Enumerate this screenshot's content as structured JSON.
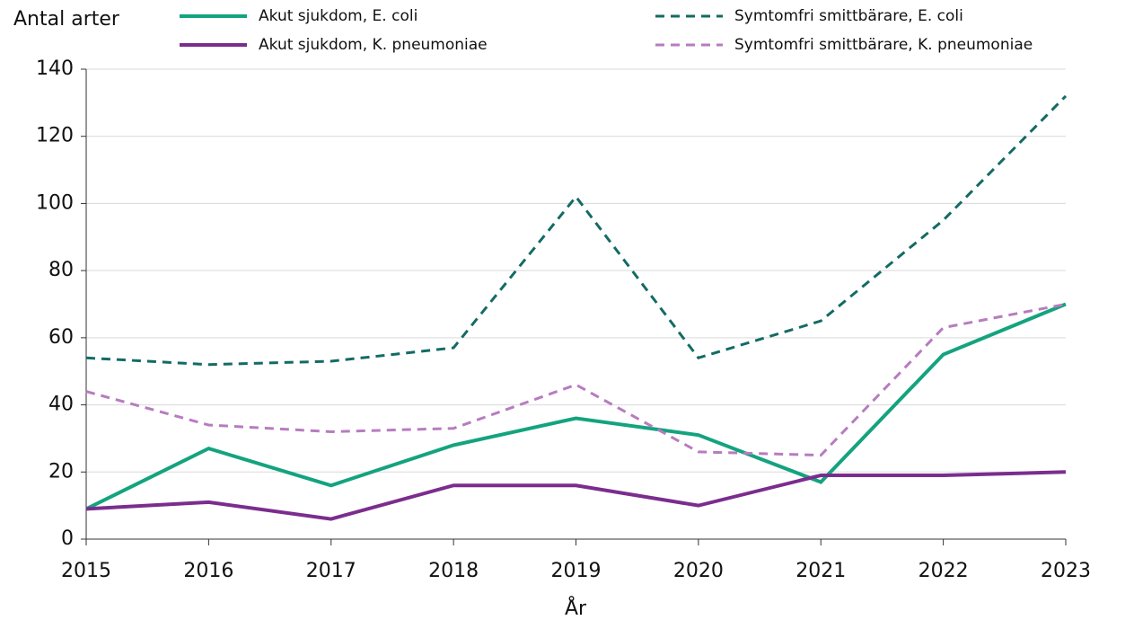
{
  "chart_data": {
    "type": "line",
    "y_label": "Antal arter",
    "x_label": "År",
    "x": [
      2015,
      2016,
      2017,
      2018,
      2019,
      2020,
      2021,
      2022,
      2023
    ],
    "xlim": [
      2015,
      2023
    ],
    "xticks": [
      2015,
      2016,
      2017,
      2018,
      2019,
      2020,
      2021,
      2022,
      2023
    ],
    "ylim": [
      0,
      140
    ],
    "yticks": [
      0,
      20,
      40,
      60,
      80,
      100,
      120,
      140
    ],
    "grid": true,
    "series": [
      {
        "name": "Akut sjukdom, E. coli",
        "color": "#14a37f",
        "dashed": false,
        "values": [
          9,
          27,
          16,
          28,
          36,
          31,
          17,
          55,
          70
        ]
      },
      {
        "name": "Symtomfri smittbärare, E. coli",
        "color": "#136b64",
        "dashed": true,
        "values": [
          54,
          52,
          53,
          57,
          102,
          54,
          65,
          95,
          132
        ]
      },
      {
        "name": "Akut sjukdom, K. pneumoniae",
        "color": "#7b2d8e",
        "dashed": false,
        "values": [
          9,
          11,
          6,
          16,
          16,
          10,
          19,
          19,
          20
        ]
      },
      {
        "name": "Symtomfri smittbärare, K. pneumoniae",
        "color": "#b77cc0",
        "dashed": true,
        "values": [
          44,
          34,
          32,
          33,
          46,
          26,
          25,
          63,
          70
        ]
      }
    ]
  }
}
